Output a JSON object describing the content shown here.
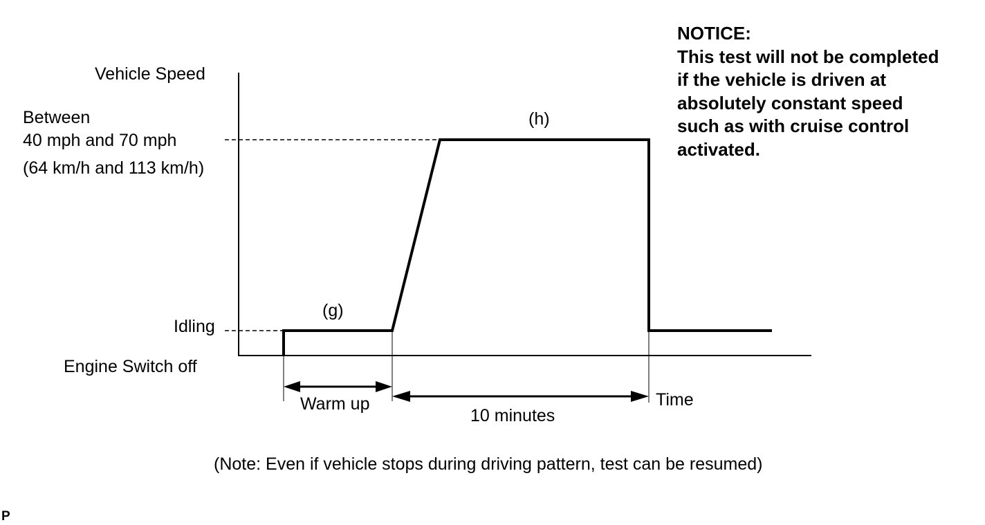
{
  "labels": {
    "vehicle_speed": "Vehicle Speed",
    "speed_line1": "Between",
    "speed_line2": "40 mph and 70 mph",
    "speed_line3": "(64 km/h and 113 km/h)",
    "idling": "Idling",
    "engine_off": "Engine Switch off",
    "segment_g": "(g)",
    "segment_h": "(h)",
    "warm_up": "Warm up",
    "ten_minutes": "10 minutes",
    "time": "Time"
  },
  "notice": {
    "title": "NOTICE:",
    "lines": [
      "This test will not be completed",
      "if the vehicle is driven at",
      "absolutely constant speed",
      "such as with cruise control",
      "activated."
    ]
  },
  "note": "(Note: Even if vehicle stops during driving pattern, test can be resumed)",
  "corner_mark": "P"
}
